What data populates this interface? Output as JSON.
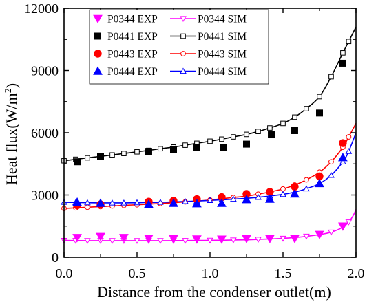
{
  "chart_data": {
    "type": "scatter",
    "title": "",
    "xlabel": "Distance from the condenser outlet(m)",
    "ylabel": "Heat flux(W/m²)",
    "ylabel_parts": {
      "main": "Heat flux(W/m",
      "sup": "2",
      "close": ")"
    },
    "xlim": [
      0.0,
      2.0
    ],
    "ylim": [
      0,
      12000
    ],
    "xticks": [
      0.0,
      0.5,
      1.0,
      1.5,
      2.0
    ],
    "xtick_labels": [
      "0.0",
      "0.5",
      "1.0",
      "1.5",
      "2.0"
    ],
    "yticks": [
      0,
      3000,
      6000,
      9000,
      12000
    ],
    "ytick_labels": [
      "0",
      "3000",
      "6000",
      "9000",
      "12000"
    ],
    "grid": false,
    "legend_position": "top-left",
    "series": [
      {
        "name": "P0344 EXP",
        "kind": "exp",
        "marker": "triangle-down",
        "color": "#ff00ff",
        "x": [
          0.09,
          0.25,
          0.41,
          0.58,
          0.75,
          0.91,
          1.08,
          1.25,
          1.41,
          1.58,
          1.75,
          1.91
        ],
        "y": [
          950,
          1000,
          950,
          920,
          900,
          880,
          870,
          900,
          900,
          900,
          1100,
          1500
        ]
      },
      {
        "name": "P0344 SIM",
        "kind": "sim",
        "marker": "triangle-down-open",
        "color": "#ff00ff",
        "x": [
          0.0,
          0.08,
          0.16,
          0.25,
          0.33,
          0.41,
          0.5,
          0.58,
          0.66,
          0.75,
          0.83,
          0.91,
          1.0,
          1.08,
          1.16,
          1.25,
          1.33,
          1.41,
          1.5,
          1.58,
          1.66,
          1.75,
          1.83,
          1.91,
          1.95,
          1.98,
          2.0
        ],
        "y": [
          810,
          805,
          800,
          800,
          800,
          800,
          800,
          800,
          800,
          800,
          805,
          810,
          815,
          820,
          830,
          840,
          860,
          880,
          910,
          950,
          1010,
          1090,
          1210,
          1450,
          1700,
          2000,
          2300
        ]
      },
      {
        "name": "P0441 EXP",
        "kind": "exp",
        "marker": "square",
        "color": "#000000",
        "x": [
          0.09,
          0.25,
          0.58,
          0.75,
          0.91,
          1.09,
          1.25,
          1.42,
          1.58,
          1.75,
          1.91
        ],
        "y": [
          4600,
          4850,
          5100,
          5200,
          5300,
          5300,
          5450,
          5900,
          6100,
          6950,
          9350
        ]
      },
      {
        "name": "P0441 SIM",
        "kind": "sim",
        "marker": "square-open",
        "color": "#000000",
        "x": [
          0.0,
          0.08,
          0.16,
          0.25,
          0.33,
          0.41,
          0.5,
          0.58,
          0.66,
          0.75,
          0.83,
          0.91,
          1.0,
          1.08,
          1.16,
          1.25,
          1.33,
          1.41,
          1.5,
          1.58,
          1.66,
          1.75,
          1.83,
          1.91,
          1.95,
          2.0
        ],
        "y": [
          4650,
          4720,
          4790,
          4860,
          4930,
          5000,
          5080,
          5150,
          5230,
          5310,
          5400,
          5490,
          5590,
          5690,
          5800,
          5920,
          6060,
          6230,
          6450,
          6750,
          7160,
          7740,
          8700,
          9850,
          10400,
          11100
        ]
      },
      {
        "name": "P0443 EXP",
        "kind": "exp",
        "marker": "circle",
        "color": "#ff0000",
        "x": [
          0.09,
          0.25,
          0.58,
          0.75,
          0.91,
          1.08,
          1.25,
          1.41,
          1.58,
          1.75,
          1.91
        ],
        "y": [
          2500,
          2550,
          2680,
          2720,
          2800,
          2900,
          3050,
          3150,
          3400,
          3900,
          5500
        ]
      },
      {
        "name": "P0443 SIM",
        "kind": "sim",
        "marker": "circle-open",
        "color": "#ff0000",
        "x": [
          0.0,
          0.08,
          0.16,
          0.25,
          0.33,
          0.41,
          0.5,
          0.58,
          0.66,
          0.75,
          0.83,
          0.91,
          1.0,
          1.08,
          1.16,
          1.25,
          1.33,
          1.41,
          1.5,
          1.58,
          1.66,
          1.75,
          1.83,
          1.91,
          1.95,
          2.0
        ],
        "y": [
          2350,
          2380,
          2410,
          2440,
          2470,
          2500,
          2530,
          2560,
          2590,
          2630,
          2670,
          2710,
          2760,
          2820,
          2880,
          2950,
          3040,
          3150,
          3290,
          3480,
          3730,
          4100,
          4600,
          5300,
          5800,
          6450
        ]
      },
      {
        "name": "P0444 EXP",
        "kind": "exp",
        "marker": "triangle-up",
        "color": "#0000ff",
        "x": [
          0.09,
          0.25,
          0.58,
          0.75,
          0.91,
          1.08,
          1.25,
          1.41,
          1.58,
          1.75,
          1.91
        ],
        "y": [
          2650,
          2600,
          2550,
          2600,
          2580,
          2600,
          2780,
          2800,
          3050,
          3550,
          4800
        ]
      },
      {
        "name": "P0444 SIM",
        "kind": "sim",
        "marker": "triangle-up-open",
        "color": "#0000ff",
        "x": [
          0.0,
          0.08,
          0.16,
          0.25,
          0.33,
          0.41,
          0.5,
          0.58,
          0.66,
          0.75,
          0.83,
          0.91,
          1.0,
          1.08,
          1.16,
          1.25,
          1.33,
          1.41,
          1.5,
          1.58,
          1.66,
          1.75,
          1.83,
          1.91,
          1.95,
          2.0
        ],
        "y": [
          2650,
          2640,
          2630,
          2620,
          2620,
          2620,
          2630,
          2640,
          2650,
          2670,
          2690,
          2710,
          2740,
          2770,
          2800,
          2840,
          2890,
          2950,
          3030,
          3140,
          3300,
          3550,
          3950,
          4600,
          5100,
          6000
        ]
      }
    ]
  }
}
